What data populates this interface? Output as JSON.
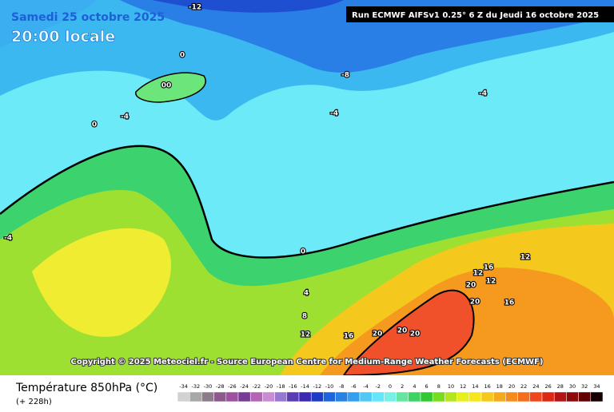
{
  "header": {
    "date": "Samedi 25 octobre 2025",
    "time": "20:00 locale",
    "run": "Run ECMWF AIFSv1 0.25° 6 Z du Jeudi 16 octobre 2025"
  },
  "copyright": "Copyright © 2025 Meteociel.fr - Source European Centre for Medium-Range Weather Forecasts (ECMWF)",
  "footer": {
    "title": "Température 850hPa (°C)",
    "subtitle": "(+ 228h)"
  },
  "contour_labels": [
    "-12",
    "-8",
    "-4",
    "-4",
    "-4",
    "0",
    "00",
    "0",
    "0",
    "4",
    "8",
    "12",
    "16",
    "20",
    "20",
    "20",
    "12",
    "16",
    "12",
    "20",
    "12",
    "20",
    "16",
    "-4"
  ],
  "legend": {
    "values": [
      -34,
      -32,
      -30,
      -28,
      -26,
      -24,
      -22,
      -20,
      -18,
      -16,
      -14,
      -12,
      -10,
      -8,
      -6,
      -4,
      -2,
      0,
      2,
      4,
      6,
      8,
      10,
      12,
      14,
      16,
      18,
      20,
      22,
      24,
      26,
      28,
      30,
      32,
      34
    ],
    "colors": [
      "#d2d2d2",
      "#a8a8a8",
      "#8c7c8c",
      "#8c5a8c",
      "#a050a0",
      "#783c96",
      "#b464b4",
      "#c88cd2",
      "#9678d2",
      "#5a3cb4",
      "#3c28b4",
      "#1e3cc8",
      "#1e64dc",
      "#2882e6",
      "#32a0f0",
      "#50c8f5",
      "#64e6fa",
      "#78f0e6",
      "#64e6a0",
      "#3cd264",
      "#32c832",
      "#78dc1e",
      "#b4e61e",
      "#e6f01e",
      "#f5e61e",
      "#f5c81e",
      "#f5aa1e",
      "#f58c1e",
      "#f56e1e",
      "#f0461e",
      "#dc2814",
      "#b41414",
      "#8c0a0a",
      "#640000",
      "#140000"
    ]
  }
}
